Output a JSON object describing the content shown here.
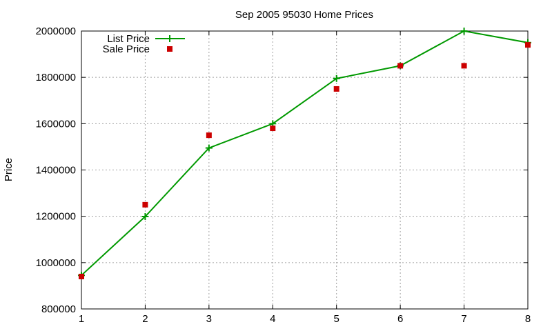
{
  "chart_data": {
    "type": "line",
    "title": "Sep 2005 95030 Home Prices",
    "xlabel": "",
    "ylabel": "Price",
    "x": [
      1,
      2,
      3,
      4,
      5,
      6,
      7,
      8
    ],
    "xlim": [
      1,
      8
    ],
    "ylim": [
      800000,
      2000000
    ],
    "x_ticks": [
      "1",
      "2",
      "3",
      "4",
      "5",
      "6",
      "7",
      "8"
    ],
    "y_ticks": [
      "800000",
      "1000000",
      "1200000",
      "1400000",
      "1600000",
      "1800000",
      "2000000"
    ],
    "grid": true,
    "legend_position": "top-left",
    "series": [
      {
        "name": "List Price",
        "style": "line-with-plus-markers",
        "color": "#009900",
        "values": [
          945000,
          1199000,
          1495000,
          1600000,
          1795000,
          1850000,
          2000000,
          1950000
        ]
      },
      {
        "name": "Sale Price",
        "style": "square-points",
        "color": "#cc0000",
        "values": [
          940000,
          1250000,
          1550000,
          1580000,
          1750000,
          1850000,
          1850000,
          1940000
        ]
      }
    ]
  }
}
